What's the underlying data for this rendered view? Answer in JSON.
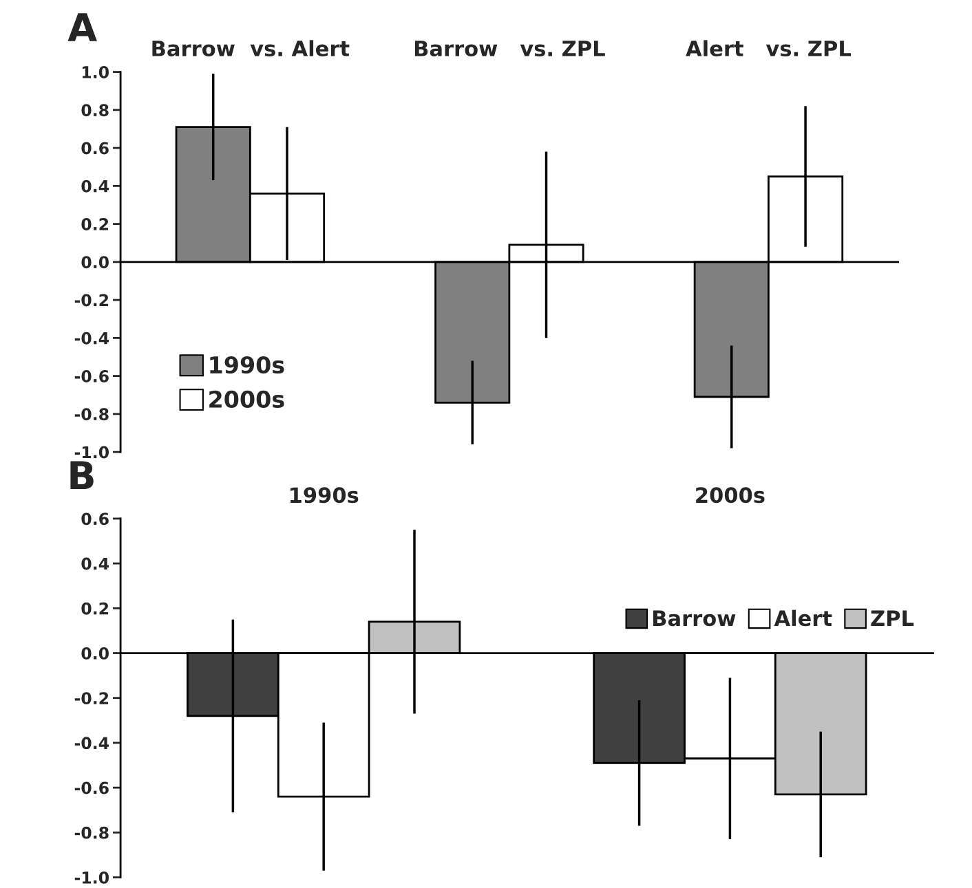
{
  "chart_data": [
    {
      "type": "bar",
      "categories": [
        "Barrow  vs. Alert",
        "Barrow   vs. ZPL",
        "Alert   vs. ZPL"
      ],
      "series": [
        {
          "name": "1990s",
          "color": "#808080",
          "values": [
            0.71,
            -0.74,
            -0.71
          ],
          "errors": [
            0.28,
            0.22,
            0.27
          ]
        },
        {
          "name": "2000s",
          "color": "#ffffff",
          "values": [
            0.36,
            0.09,
            0.45
          ],
          "errors": [
            0.35,
            0.49,
            0.37
          ]
        }
      ],
      "ylim": [
        -1.0,
        1.0
      ],
      "yticks": [
        {
          "value": 1.0,
          "label": "1.0"
        },
        {
          "value": 0.8,
          "label": "0.8"
        },
        {
          "value": 0.6,
          "label": "0.6"
        },
        {
          "value": 0.4,
          "label": "0.4"
        },
        {
          "value": 0.2,
          "label": "0.2"
        },
        {
          "value": 0.0,
          "label": "0.0"
        },
        {
          "value": -0.2,
          "label": "-0.2"
        },
        {
          "value": -0.4,
          "label": "-0.4"
        },
        {
          "value": -0.6,
          "label": "-0.6"
        },
        {
          "value": -0.8,
          "label": "-0.8"
        },
        {
          "value": -1.0,
          "label": "-1.0"
        }
      ],
      "legend": "lower left",
      "annotations": [
        "A"
      ]
    },
    {
      "type": "bar",
      "categories": [
        "1990s",
        "2000s"
      ],
      "series": [
        {
          "name": "Barrow",
          "color": "#404040",
          "values": [
            -0.28,
            -0.49
          ],
          "errors": [
            0.43,
            0.28
          ]
        },
        {
          "name": "Alert",
          "color": "#ffffff",
          "values": [
            -0.64,
            -0.47
          ],
          "errors": [
            0.33,
            0.36
          ]
        },
        {
          "name": "ZPL",
          "color": "#c0c0c0",
          "values": [
            0.14,
            -0.63
          ],
          "errors": [
            0.41,
            0.28
          ]
        }
      ],
      "ylim": [
        -1.0,
        0.6
      ],
      "yticks": [
        {
          "value": 0.6,
          "label": "0.6"
        },
        {
          "value": 0.4,
          "label": "0.4"
        },
        {
          "value": 0.2,
          "label": "0.2"
        },
        {
          "value": 0.0,
          "label": "0.0"
        },
        {
          "value": -0.2,
          "label": "-0.2"
        },
        {
          "value": -0.4,
          "label": "-0.4"
        },
        {
          "value": -0.6,
          "label": "-0.6"
        },
        {
          "value": -0.8,
          "label": "-0.8"
        },
        {
          "value": -1.0,
          "label": "-1.0"
        }
      ],
      "legend": "top right",
      "annotations": [
        "B"
      ]
    }
  ]
}
